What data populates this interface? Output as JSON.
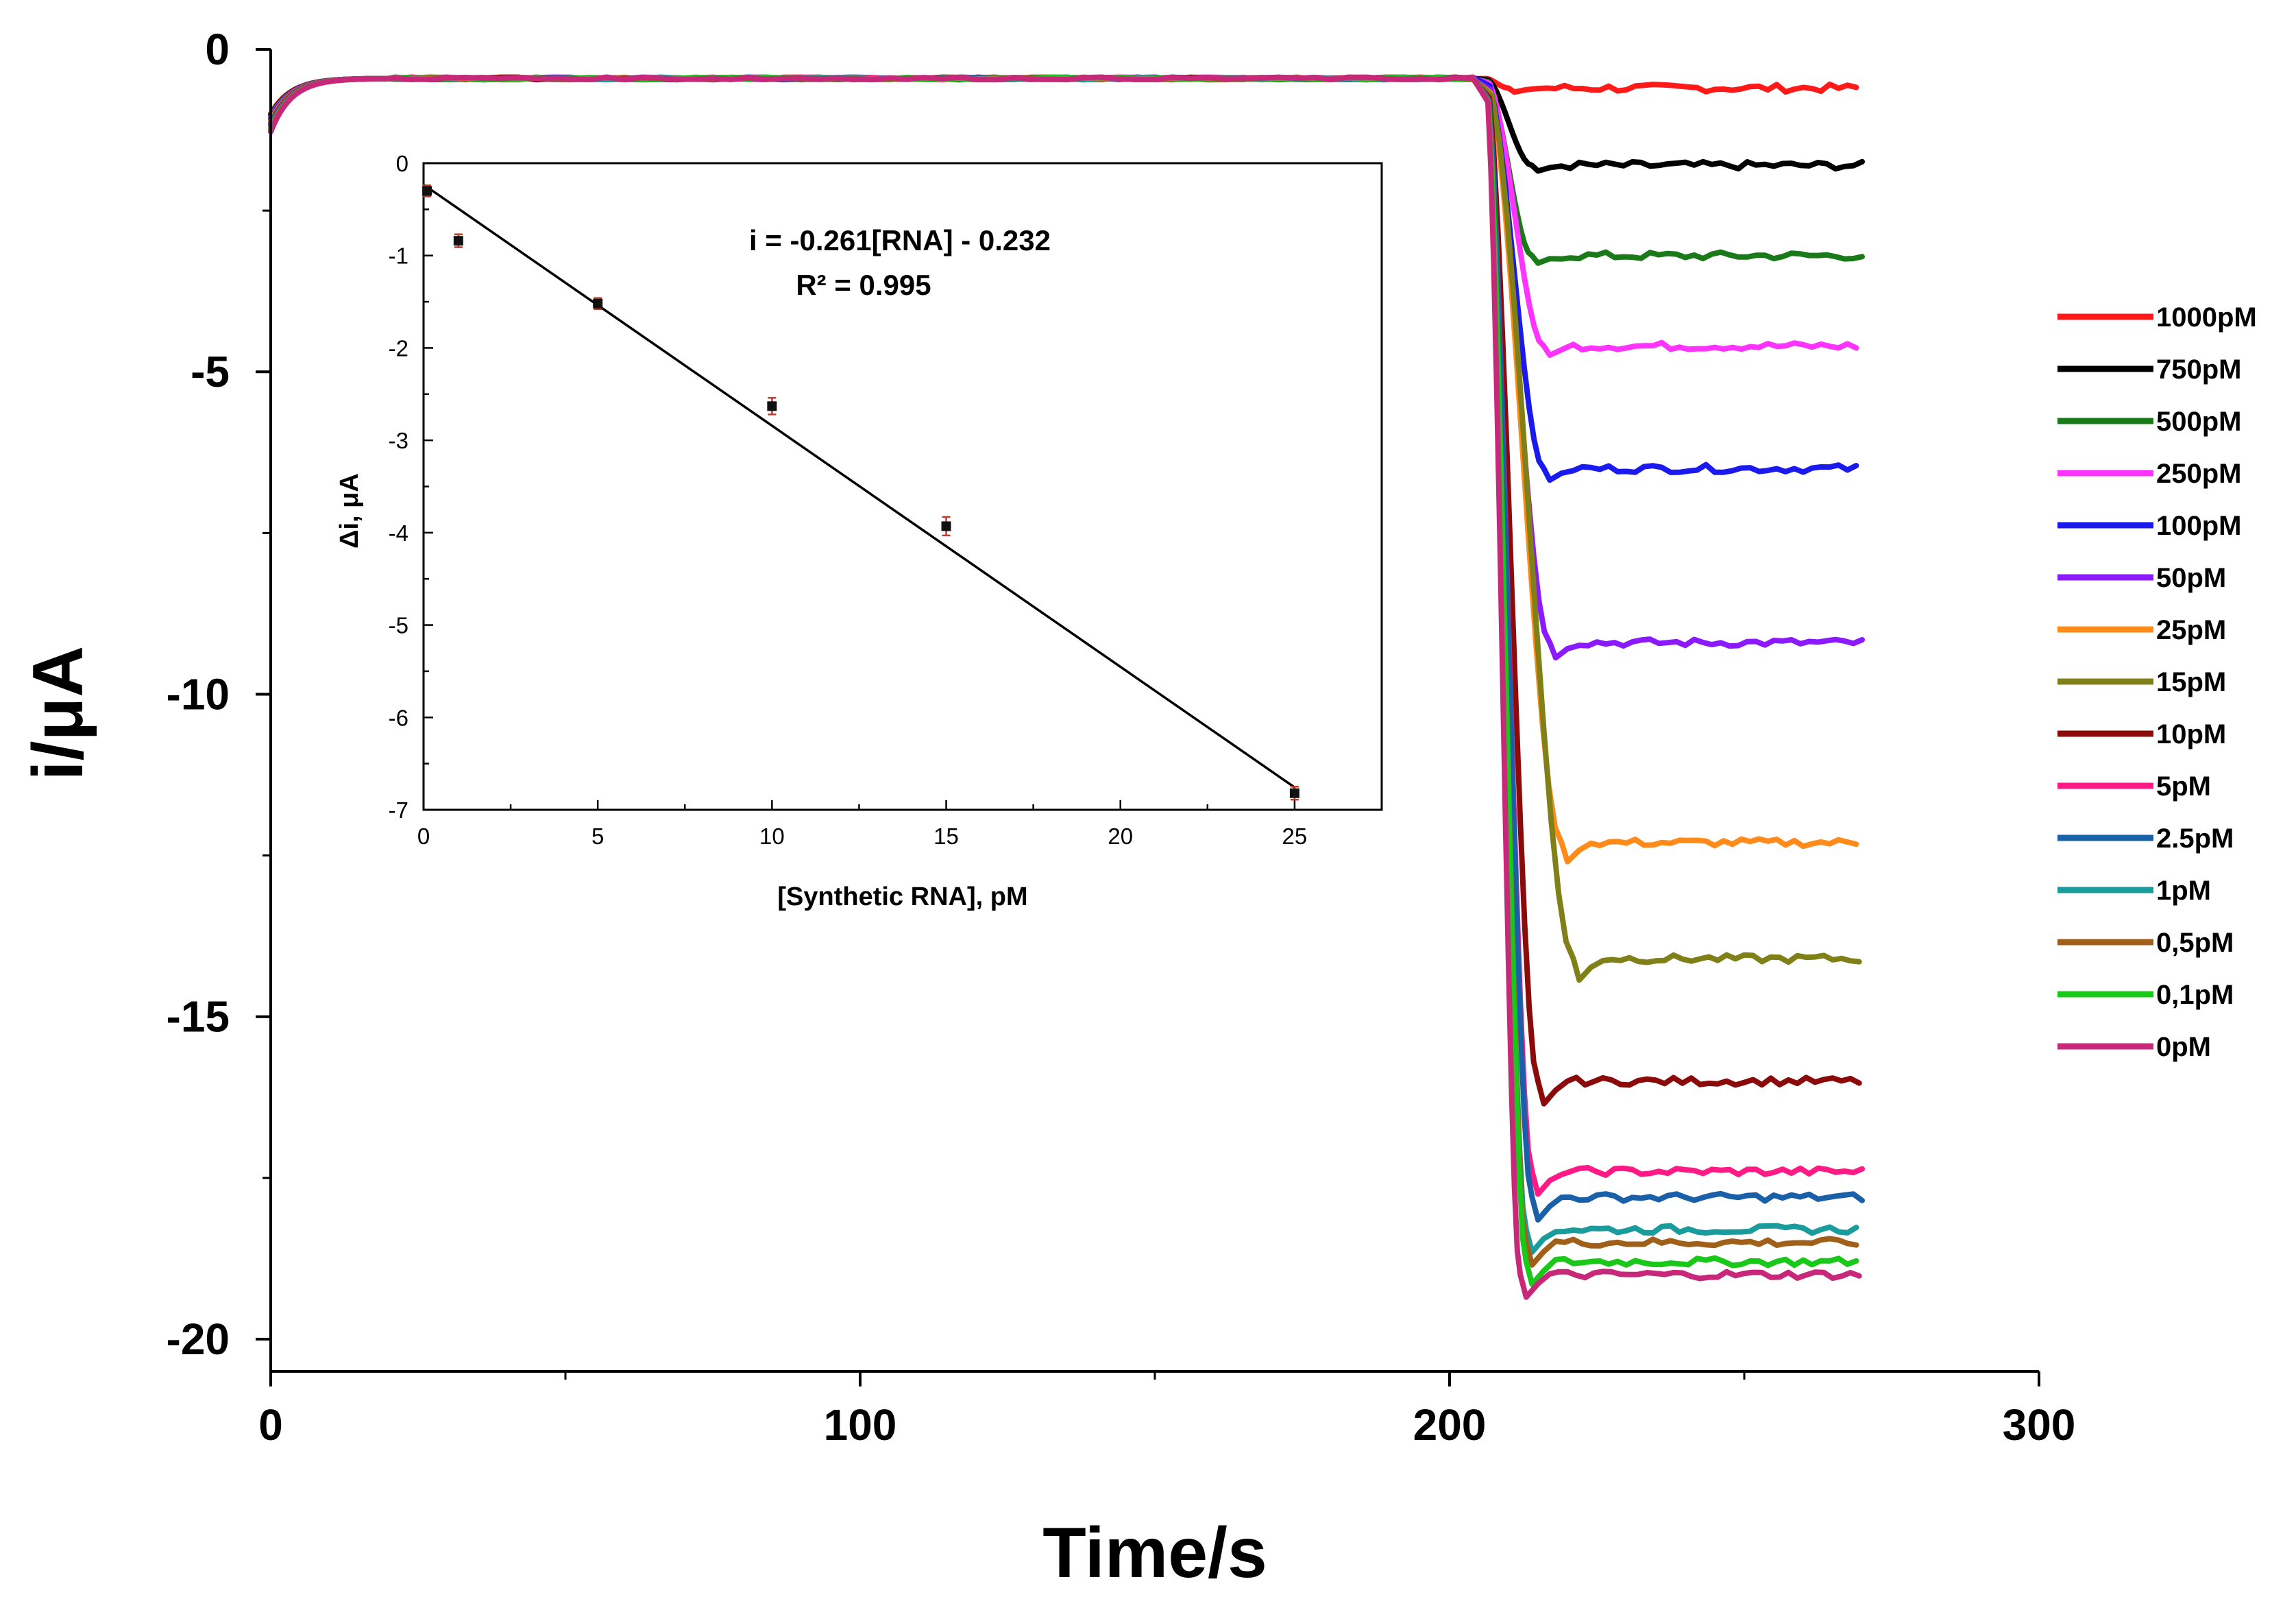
{
  "chart_data": [
    {
      "type": "line",
      "xlabel": "Time/s",
      "ylabel": "i/μA",
      "xlim": [
        0,
        300
      ],
      "ylim": [
        -20.5,
        0
      ],
      "x_ticks": [
        0,
        100,
        200,
        300
      ],
      "x_minor_ticks": [
        50,
        150,
        250
      ],
      "y_ticks": [
        0,
        -5,
        -10,
        -15,
        -20
      ],
      "y_minor_ticks": [
        -2.5,
        -7.5,
        -12.5,
        -17.5
      ],
      "x_tick_labels": [
        "0",
        "100",
        "200",
        "300"
      ],
      "y_tick_labels": [
        "0",
        "-5",
        "-10",
        "-15",
        "-20"
      ],
      "baseline_current": -0.45,
      "initial_current": -1.0,
      "step_start_time": 206,
      "end_time": 270,
      "legend_position": "right",
      "series": [
        {
          "name": "1000pM",
          "color": "#ff1a1a",
          "steady_state": -0.6,
          "step_end_time": 210
        },
        {
          "name": "750pM",
          "color": "#000000",
          "steady_state": -1.8,
          "step_end_time": 214
        },
        {
          "name": "500pM",
          "color": "#1a7a1a",
          "steady_state": -3.2,
          "step_end_time": 214
        },
        {
          "name": "250pM",
          "color": "#ff33ff",
          "steady_state": -4.6,
          "step_end_time": 216
        },
        {
          "name": "100pM",
          "color": "#1a1aee",
          "steady_state": -6.5,
          "step_end_time": 216
        },
        {
          "name": "50pM",
          "color": "#8c1aff",
          "steady_state": -9.2,
          "step_end_time": 217
        },
        {
          "name": "25pM",
          "color": "#ff8c1a",
          "steady_state": -12.3,
          "step_end_time": 219
        },
        {
          "name": "15pM",
          "color": "#808019",
          "steady_state": -14.1,
          "step_end_time": 221
        },
        {
          "name": "10pM",
          "color": "#8b0a0a",
          "steady_state": -16.0,
          "step_end_time": 215
        },
        {
          "name": "5pM",
          "color": "#ff1a85",
          "steady_state": -17.4,
          "step_end_time": 214
        },
        {
          "name": "2.5pM",
          "color": "#1a60a8",
          "steady_state": -17.8,
          "step_end_time": 214
        },
        {
          "name": "1pM",
          "color": "#1a9c9c",
          "steady_state": -18.3,
          "step_end_time": 213
        },
        {
          "name": "0,5pM",
          "color": "#a0601a",
          "steady_state": -18.5,
          "step_end_time": 213
        },
        {
          "name": "0,1pM",
          "color": "#1ac81a",
          "steady_state": -18.8,
          "step_end_time": 213
        },
        {
          "name": "0pM",
          "color": "#c8287a",
          "steady_state": -19.0,
          "step_end_time": 212
        }
      ]
    },
    {
      "type": "scatter",
      "subtype": "linear-fit",
      "xlabel": "[Synthetic RNA], pM",
      "ylabel": "Δi, μA",
      "xlim": [
        0,
        27.5
      ],
      "ylim": [
        -7,
        0
      ],
      "x_ticks": [
        0,
        5,
        10,
        15,
        20,
        25
      ],
      "x_minor_ticks": [
        2.5,
        7.5,
        12.5,
        17.5,
        22.5
      ],
      "y_ticks": [
        0,
        -1,
        -2,
        -3,
        -4,
        -5,
        -6,
        -7
      ],
      "y_minor_ticks": [
        -0.5,
        -1.5,
        -2.5,
        -3.5,
        -4.5,
        -5.5,
        -6.5
      ],
      "x_tick_labels": [
        "0",
        "5",
        "10",
        "15",
        "20",
        "25"
      ],
      "y_tick_labels": [
        "0",
        "-1",
        "-2",
        "-3",
        "-4",
        "-5",
        "-6",
        "-7"
      ],
      "equation": "i = -0.261[RNA] - 0.232",
      "r_squared": "R² = 0.995",
      "fit_slope": -0.261,
      "fit_intercept": -0.232,
      "fit_x_range": [
        0,
        25
      ],
      "points": [
        {
          "x": 0.1,
          "y": -0.3,
          "err": 0.06
        },
        {
          "x": 1,
          "y": -0.84,
          "err": 0.07
        },
        {
          "x": 5,
          "y": -1.52,
          "err": 0.06
        },
        {
          "x": 10,
          "y": -2.63,
          "err": 0.09
        },
        {
          "x": 15,
          "y": -3.93,
          "err": 0.1
        },
        {
          "x": 25,
          "y": -6.82,
          "err": 0.07
        }
      ]
    }
  ]
}
